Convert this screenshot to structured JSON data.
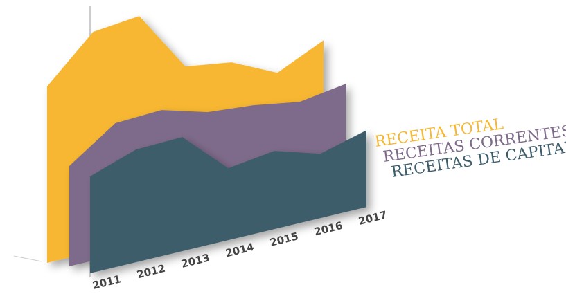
{
  "chart_data": {
    "type": "area",
    "categories": [
      "2011",
      "2012",
      "2013",
      "2014",
      "2015",
      "2016",
      "2017"
    ],
    "series": [
      {
        "name": "RECEITA TOTAL",
        "color": "#f7b732",
        "values": [
          255,
          318,
          325,
          236,
          226,
          195,
          226
        ]
      },
      {
        "name": "RECEITAS CORRENTES",
        "color": "#7e6a8a",
        "values": [
          145,
          191,
          194,
          175,
          169,
          158,
          168
        ]
      },
      {
        "name": "RECEITAS DE CAPITAL",
        "color": "#3d5d6b",
        "values": [
          140,
          163,
          165,
          104,
          113,
          93,
          111
        ]
      }
    ]
  }
}
